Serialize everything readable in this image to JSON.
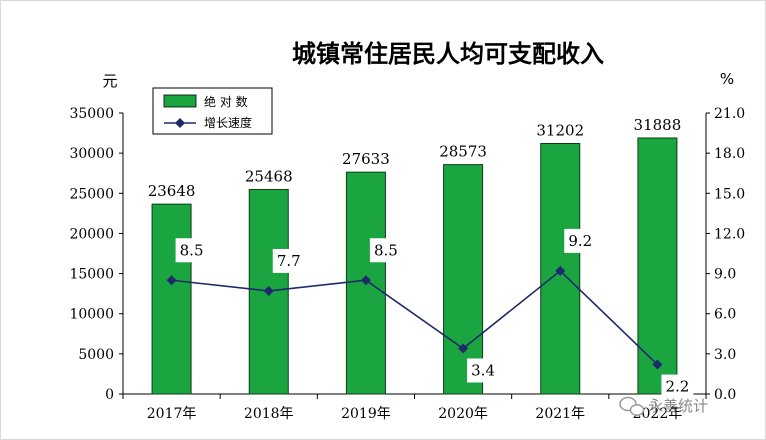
{
  "chart_data": {
    "type": "bar",
    "title": "城镇常住居民人均可支配收入",
    "categories": [
      "2017年",
      "2018年",
      "2019年",
      "2020年",
      "2021年",
      "2022年"
    ],
    "series": [
      {
        "name": "绝 对 数",
        "type": "bar",
        "axis": "left",
        "values": [
          23648,
          25468,
          27633,
          28573,
          31202,
          31888
        ],
        "labels": [
          "23648",
          "25468",
          "27633",
          "28573",
          "31202",
          "31888"
        ],
        "color": "#1aa541"
      },
      {
        "name": "增长速度",
        "type": "line",
        "axis": "right",
        "values": [
          8.5,
          7.7,
          8.5,
          3.4,
          9.2,
          2.2
        ],
        "labels": [
          "8.5",
          "7.7",
          "8.5",
          "3.4",
          "9.2",
          "2.2"
        ],
        "color": "#1f2a6b"
      }
    ],
    "left_axis": {
      "unit": "元",
      "ylim": [
        0,
        35000
      ],
      "ticks": [
        "0",
        "5000",
        "10000",
        "15000",
        "20000",
        "25000",
        "30000",
        "35000"
      ]
    },
    "right_axis": {
      "unit": "%",
      "ylim": [
        0,
        21
      ],
      "ticks": [
        "0.0",
        "3.0",
        "6.0",
        "9.0",
        "12.0",
        "15.0",
        "18.0",
        "21.0"
      ]
    },
    "legend_position": "top-left",
    "grid": false
  },
  "watermark": "永善统计"
}
